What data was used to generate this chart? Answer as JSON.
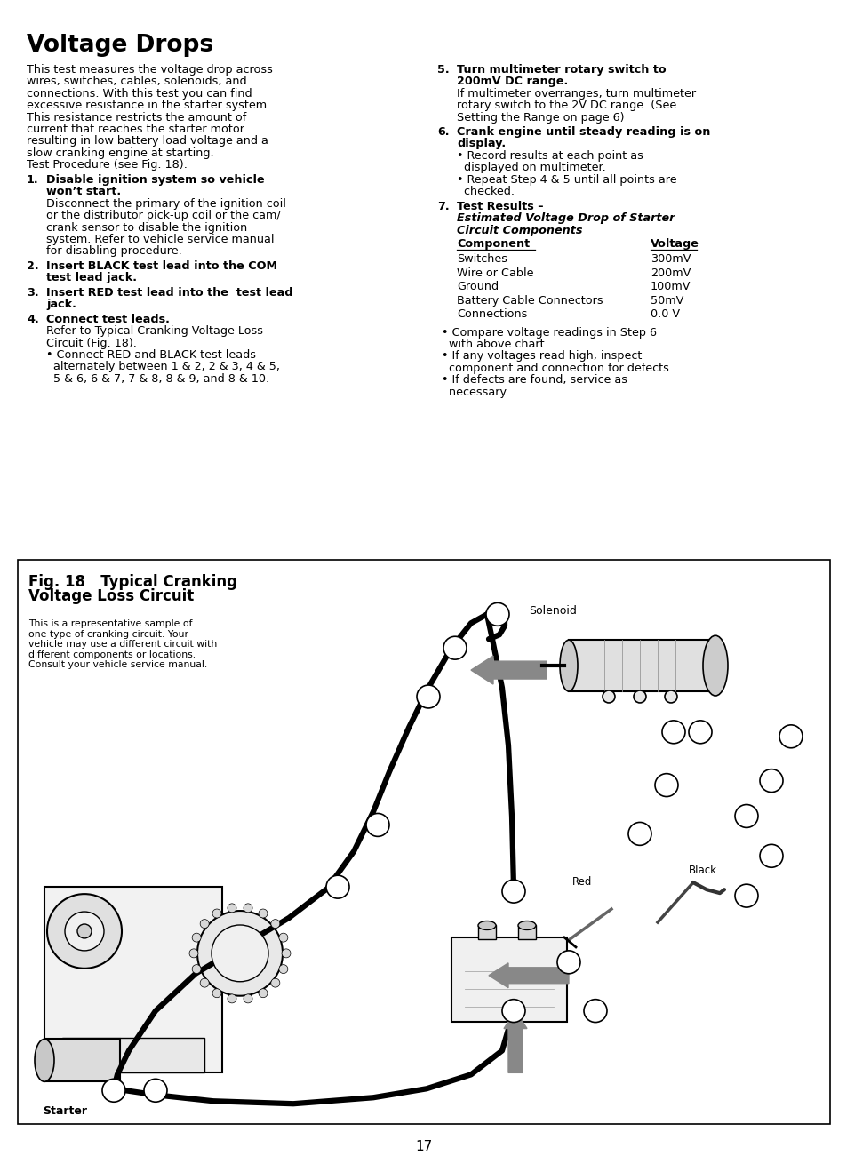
{
  "title": "Voltage Drops",
  "bg_color": "#ffffff",
  "text_color": "#000000",
  "page_number": "17",
  "left_column": {
    "intro": "This test measures the voltage drop across\nwires, switches, cables, solenoids, and\nconnections. With this test you can find\nexcessive resistance in the starter system.\nThis resistance restricts the amount of\ncurrent that reaches the starter motor\nresulting in low battery load voltage and a\nslow cranking engine at starting.\nTest Procedure (see Fig. 18):",
    "items": [
      {
        "num": "1.",
        "bold": "Disable ignition system so vehicle\nwon’t start.",
        "body": "Disconnect the primary of the ignition coil\nor the distributor pick-up coil or the cam/\ncrank sensor to disable the ignition\nsystem. Refer to vehicle service manual\nfor disabling procedure."
      },
      {
        "num": "2.",
        "bold": "Insert BLACK test lead into the COM\ntest lead jack.",
        "body": ""
      },
      {
        "num": "3.",
        "bold": "Insert RED test lead into the  test lead\njack.",
        "body": ""
      },
      {
        "num": "4.",
        "bold": "Connect test leads.",
        "body": "Refer to Typical Cranking Voltage Loss\nCircuit (Fig. 18).\n• Connect RED and BLACK test leads\n  alternately between 1 & 2, 2 & 3, 4 & 5,\n  5 & 6, 6 & 7, 7 & 8, 8 & 9, and 8 & 10."
      }
    ]
  },
  "right_column": {
    "items": [
      {
        "num": "5.",
        "bold": "Turn multimeter rotary switch to\n200mV DC range.",
        "body": "If multimeter overranges, turn multimeter\nrotary switch to the 2V DC range. (See\nSetting the Range on page 6)"
      },
      {
        "num": "6.",
        "bold": "Crank engine until steady reading is on\ndisplay.",
        "body": "• Record results at each point as\n  displayed on multimeter.\n• Repeat Step 4 & 5 until all points are\n  checked."
      }
    ],
    "table": {
      "headers": [
        "Component",
        "Voltage"
      ],
      "rows": [
        [
          "Switches",
          "300mV"
        ],
        [
          "Wire or Cable",
          "200mV"
        ],
        [
          "Ground",
          "100mV"
        ],
        [
          "Battery Cable Connectors",
          "50mV"
        ],
        [
          "Connections",
          "0.0 V"
        ]
      ]
    },
    "after_table": "• Compare voltage readings in Step 6\n  with above chart.\n• If any voltages read high, inspect\n  component and connection for defects.\n• If defects are found, service as\n  necessary."
  },
  "figure": {
    "title_line1": "Fig. 18   Typical Cranking",
    "title_line2": "Voltage Loss Circuit",
    "note": "This is a representative sample of\none type of cranking circuit. Your\nvehicle may use a different circuit with\ndifferent components or locations.\nConsult your vehicle service manual.",
    "label_solenoid": "Solenoid",
    "label_red": "Red",
    "label_black": "Black",
    "label_starter": "Starter"
  }
}
